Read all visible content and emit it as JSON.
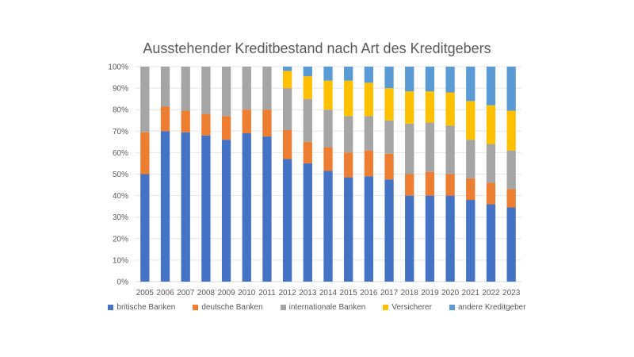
{
  "chart_data": {
    "type": "bar",
    "stacked": true,
    "title": "Ausstehender Kreditbestand nach Art des Kreditgebers",
    "xlabel": "",
    "ylabel": "",
    "ylim": [
      0,
      100
    ],
    "yticks": [
      "0%",
      "10%",
      "20%",
      "30%",
      "40%",
      "50%",
      "60%",
      "70%",
      "80%",
      "90%",
      "100%"
    ],
    "grid": true,
    "legend_position": "bottom",
    "categories": [
      "2005",
      "2006",
      "2007",
      "2008",
      "2009",
      "2010",
      "2011",
      "2012",
      "2013",
      "2014",
      "2015",
      "2016",
      "2017",
      "2018",
      "2019",
      "2020",
      "2021",
      "2022",
      "2023"
    ],
    "series": [
      {
        "name": "britische Banken",
        "color": "#4472C4",
        "values": [
          50,
          70,
          69.5,
          68,
          66,
          69,
          67.5,
          57,
          55,
          51.5,
          48.5,
          49,
          47.5,
          40,
          40,
          40,
          38,
          36,
          34.5
        ]
      },
      {
        "name": "deutsche Banken",
        "color": "#ED7D31",
        "values": [
          19.5,
          11.5,
          10,
          10,
          11,
          11,
          12.5,
          13.5,
          10,
          11,
          11.5,
          12,
          12,
          10,
          11,
          10,
          10,
          10,
          8.5
        ]
      },
      {
        "name": "internationale Banken",
        "color": "#A5A5A5",
        "values": [
          30.5,
          18.5,
          20.5,
          22,
          23,
          20,
          20,
          19.5,
          20,
          17.5,
          17,
          16,
          15.5,
          23.5,
          23,
          22.5,
          18,
          18,
          18
        ]
      },
      {
        "name": "Versicherer",
        "color": "#FFC000",
        "values": [
          0,
          0,
          0,
          0,
          0,
          0,
          0,
          8,
          10.5,
          13.5,
          16.5,
          15.5,
          15,
          15,
          14.5,
          15.5,
          18,
          18,
          18.5
        ]
      },
      {
        "name": "andere Kreditgeber",
        "color": "#5B9BD5",
        "values": [
          0,
          0,
          0,
          0,
          0,
          0,
          0,
          2,
          4.5,
          6.5,
          6.5,
          7.5,
          10,
          11.5,
          11.5,
          12,
          16,
          18,
          20.5
        ]
      }
    ]
  }
}
